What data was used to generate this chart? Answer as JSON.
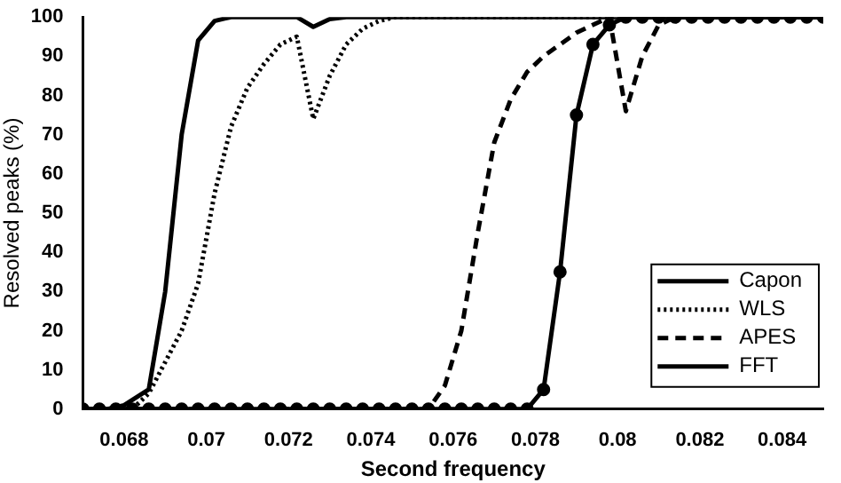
{
  "chart_data": {
    "type": "line",
    "xlabel": "Second frequency",
    "ylabel": "Resolved peaks (%)",
    "xlim": [
      0.067,
      0.085
    ],
    "xticks": [
      0.068,
      0.07,
      0.072,
      0.074,
      0.076,
      0.078,
      0.08,
      0.082,
      0.084
    ],
    "ylim": [
      0,
      100
    ],
    "yticks": [
      0,
      10,
      20,
      30,
      40,
      50,
      60,
      70,
      80,
      90,
      100
    ],
    "grid": false,
    "legend": "bottom right",
    "series": [
      {
        "name": "Capon",
        "color": "#000000",
        "line_style": "solid",
        "marker": "none",
        "x": [
          0.067,
          0.0676,
          0.068,
          0.0686,
          0.069,
          0.0694,
          0.0698,
          0.0702,
          0.0706,
          0.0722,
          0.0726,
          0.073,
          0.0734,
          0.085
        ],
        "values": [
          0,
          0,
          1,
          5,
          30,
          70,
          94,
          99,
          100,
          100,
          97.5,
          99.5,
          100,
          100
        ]
      },
      {
        "name": "WLS",
        "color": "#000000",
        "line_style": "dotted",
        "marker": "none",
        "x": [
          0.067,
          0.0682,
          0.0686,
          0.069,
          0.0694,
          0.0698,
          0.0702,
          0.0706,
          0.071,
          0.0714,
          0.0718,
          0.0722,
          0.0726,
          0.073,
          0.0734,
          0.0738,
          0.0742,
          0.0746,
          0.085
        ],
        "values": [
          0,
          0,
          4,
          12,
          20,
          32,
          55,
          72,
          82,
          88,
          93,
          95,
          74,
          85,
          93,
          97,
          99,
          100,
          100
        ]
      },
      {
        "name": "APES",
        "color": "#000000",
        "line_style": "dashed",
        "marker": "none",
        "x": [
          0.067,
          0.0754,
          0.0758,
          0.0762,
          0.0766,
          0.077,
          0.0774,
          0.0778,
          0.0782,
          0.0786,
          0.079,
          0.0794,
          0.0798,
          0.0802,
          0.0806,
          0.081,
          0.0814,
          0.085
        ],
        "values": [
          0,
          0,
          6,
          20,
          45,
          68,
          79,
          86,
          90,
          93,
          96,
          98,
          100,
          76,
          90,
          98,
          100,
          100
        ]
      },
      {
        "name": "FFT",
        "color": "#000000",
        "line_style": "solid",
        "marker": "circle",
        "x": [
          0.067,
          0.0674,
          0.0678,
          0.0682,
          0.0686,
          0.069,
          0.0694,
          0.0698,
          0.0702,
          0.0706,
          0.071,
          0.0714,
          0.0718,
          0.0722,
          0.0726,
          0.073,
          0.0734,
          0.0738,
          0.0742,
          0.0746,
          0.075,
          0.0754,
          0.0758,
          0.0762,
          0.0766,
          0.077,
          0.0774,
          0.0778,
          0.0782,
          0.0786,
          0.079,
          0.0794,
          0.0798,
          0.0802,
          0.0806,
          0.081,
          0.0814,
          0.0818,
          0.0822,
          0.0826,
          0.083,
          0.0834,
          0.0838,
          0.0842,
          0.0846,
          0.085
        ],
        "values": [
          0,
          0,
          0,
          0,
          0,
          0,
          0,
          0,
          0,
          0,
          0,
          0,
          0,
          0,
          0,
          0,
          0,
          0,
          0,
          0,
          0,
          0,
          0,
          0,
          0,
          0,
          0,
          0,
          5,
          35,
          75,
          93,
          98,
          100,
          100,
          100,
          100,
          100,
          100,
          100,
          100,
          100,
          100,
          100,
          100,
          100
        ]
      }
    ]
  }
}
